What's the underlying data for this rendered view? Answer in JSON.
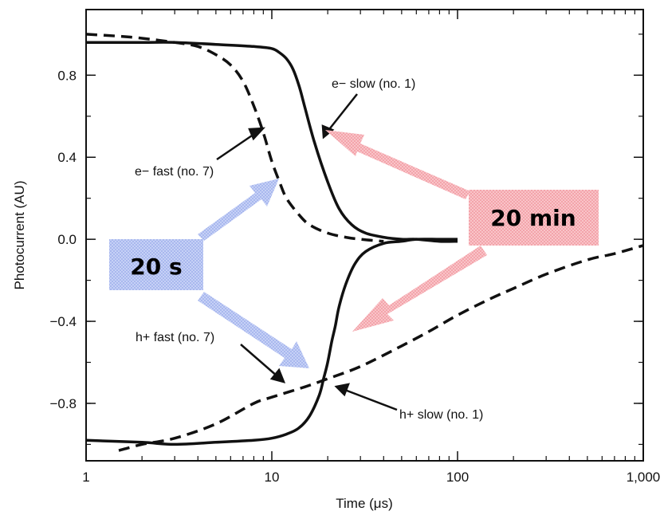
{
  "chart_data": {
    "type": "line",
    "title": "",
    "xlabel": "Time (μs)",
    "ylabel": "Photocurrent (AU)",
    "xscale": "log",
    "xlim": [
      1,
      1000
    ],
    "ylim": [
      -1.08,
      1.12
    ],
    "x_ticks": [
      1,
      10,
      100,
      1000
    ],
    "x_tick_labels": [
      "1",
      "10",
      "100",
      "1,000"
    ],
    "y_ticks": [
      0.8,
      0.4,
      0.0,
      -0.4,
      -0.8
    ],
    "y_tick_labels": [
      "0.8",
      "0.4",
      "0.0",
      "−0.4",
      "−0.8"
    ],
    "grid": false,
    "series": [
      {
        "key": "e_slow",
        "style": "solid",
        "x": [
          1,
          2,
          3,
          5,
          8,
          10,
          11,
          12,
          13,
          14,
          15,
          17,
          20,
          23,
          27,
          32,
          40,
          50,
          60,
          80,
          100
        ],
        "y": [
          0.96,
          0.96,
          0.96,
          0.95,
          0.94,
          0.93,
          0.91,
          0.88,
          0.83,
          0.75,
          0.65,
          0.47,
          0.28,
          0.15,
          0.07,
          0.03,
          0.01,
          0.0,
          0.0,
          -0.01,
          -0.01
        ]
      },
      {
        "key": "e_fast",
        "style": "dashed",
        "x": [
          1,
          1.5,
          2,
          3,
          4,
          5,
          6,
          7,
          8,
          9,
          10,
          11,
          12,
          14,
          16,
          20,
          25,
          30,
          40
        ],
        "y": [
          1.0,
          0.99,
          0.98,
          0.96,
          0.94,
          0.9,
          0.85,
          0.77,
          0.65,
          0.52,
          0.38,
          0.28,
          0.2,
          0.12,
          0.07,
          0.03,
          0.01,
          0.0,
          -0.01
        ]
      },
      {
        "key": "h_slow",
        "style": "solid",
        "x": [
          1,
          2,
          3,
          5,
          8,
          10,
          12,
          14,
          16,
          18,
          19,
          20,
          21,
          22,
          23,
          25,
          28,
          32,
          40,
          50,
          60,
          80,
          100
        ],
        "y": [
          -0.98,
          -0.99,
          -1.0,
          -0.99,
          -0.98,
          -0.97,
          -0.95,
          -0.92,
          -0.86,
          -0.76,
          -0.68,
          -0.6,
          -0.5,
          -0.42,
          -0.33,
          -0.22,
          -0.12,
          -0.06,
          -0.02,
          -0.01,
          0.0,
          0.0,
          0.0
        ]
      },
      {
        "key": "h_fast",
        "style": "dashed",
        "x": [
          1.5,
          2,
          3,
          5,
          8,
          10,
          15,
          20,
          30,
          50,
          70,
          100,
          150,
          200,
          300,
          500,
          700,
          1000
        ],
        "y": [
          -1.03,
          -1.0,
          -0.97,
          -0.9,
          -0.8,
          -0.77,
          -0.72,
          -0.68,
          -0.62,
          -0.52,
          -0.45,
          -0.37,
          -0.29,
          -0.24,
          -0.17,
          -0.1,
          -0.07,
          -0.03
        ]
      }
    ],
    "annotations": [
      {
        "key": "e_slow",
        "text": "e− slow (no. 1)"
      },
      {
        "key": "e_fast",
        "text": "e− fast (no. 7)"
      },
      {
        "key": "h_fast",
        "text": "h+ fast (no. 7)"
      },
      {
        "key": "h_slow",
        "text": "h+ slow (no. 1)"
      }
    ],
    "callouts": [
      {
        "key": "fast",
        "text": "20 s",
        "fill": "#b9c6f2",
        "arrow": "#b9c6f2"
      },
      {
        "key": "slow",
        "text": "20 min",
        "fill": "#f7b3b9",
        "arrow": "#f7b3b9"
      }
    ]
  }
}
